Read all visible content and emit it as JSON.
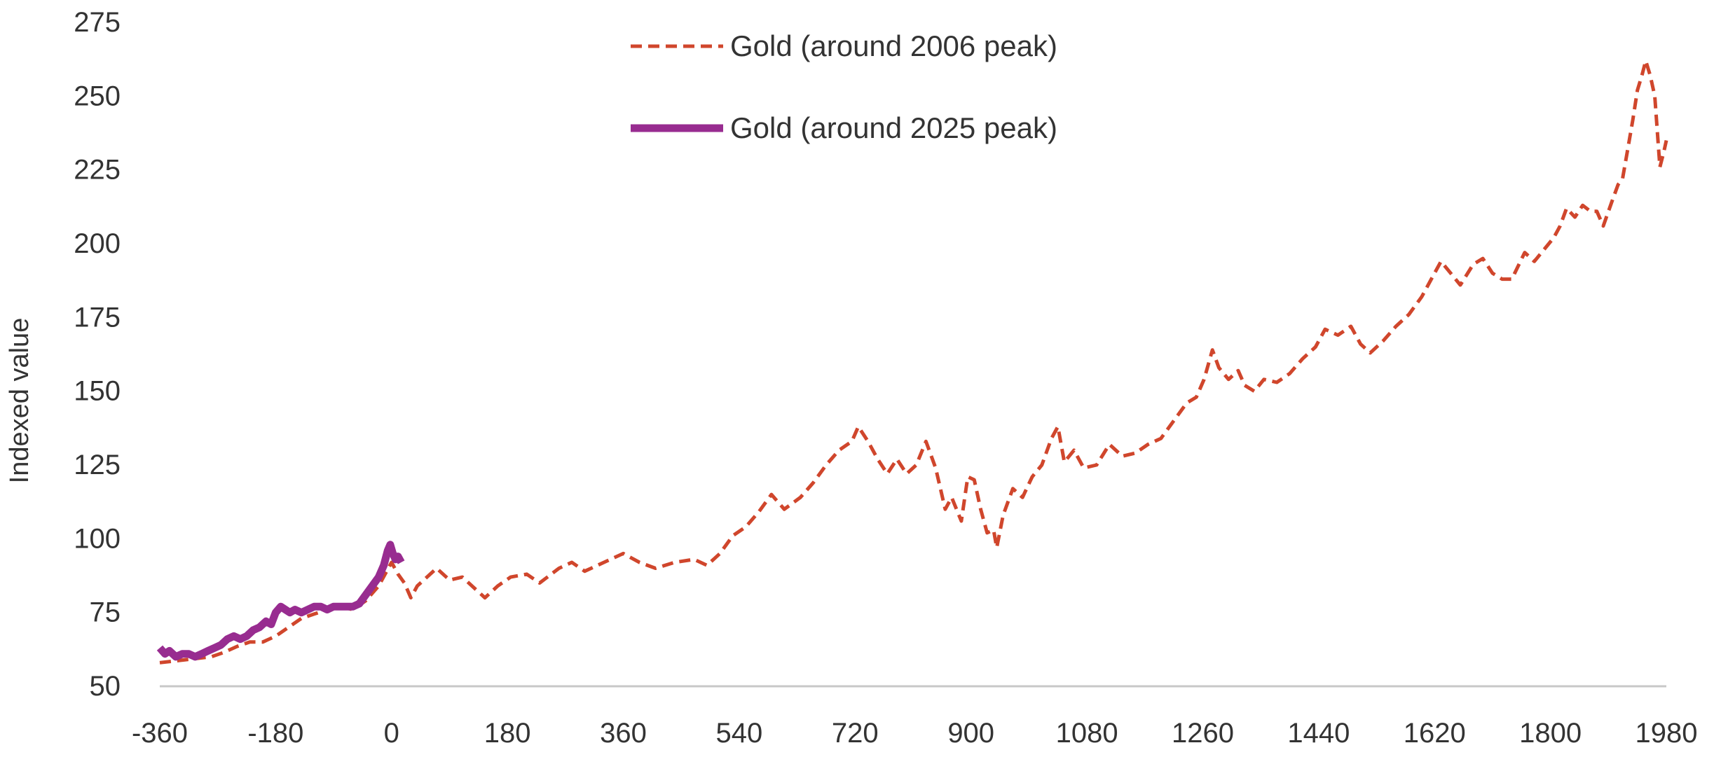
{
  "chart_data": {
    "type": "line",
    "title": "",
    "xlabel": "",
    "ylabel": "Indexed value",
    "xlim": [
      -360,
      1980
    ],
    "ylim": [
      50,
      275
    ],
    "x_ticks": [
      -360,
      -180,
      0,
      180,
      360,
      540,
      720,
      900,
      1080,
      1260,
      1440,
      1620,
      1800,
      1980
    ],
    "x_tick_labels": [
      "-360",
      "-180",
      "0",
      "180",
      "360",
      "540",
      "720",
      "900",
      "1080",
      "1260",
      "1440",
      "1620",
      "1800",
      "1980"
    ],
    "y_ticks": [
      50,
      75,
      100,
      125,
      150,
      175,
      200,
      225,
      250,
      275
    ],
    "y_tick_labels": [
      "50",
      "75",
      "100",
      "125",
      "150",
      "175",
      "200",
      "225",
      "250",
      "275"
    ],
    "grid": false,
    "legend_position": "top-center",
    "series": [
      {
        "name": "Gold (around 2006 peak)",
        "color": "#D0462C",
        "style": "dashed",
        "points": [
          [
            -360,
            58
          ],
          [
            -340,
            58.5
          ],
          [
            -320,
            59
          ],
          [
            -300,
            59.5
          ],
          [
            -280,
            60
          ],
          [
            -260,
            61.5
          ],
          [
            -240,
            63.5
          ],
          [
            -220,
            65
          ],
          [
            -200,
            65
          ],
          [
            -180,
            67
          ],
          [
            -160,
            70
          ],
          [
            -140,
            73
          ],
          [
            -120,
            74.5
          ],
          [
            -100,
            76
          ],
          [
            -80,
            77
          ],
          [
            -60,
            76
          ],
          [
            -40,
            79
          ],
          [
            -20,
            84
          ],
          [
            0,
            92
          ],
          [
            10,
            88
          ],
          [
            20,
            85
          ],
          [
            30,
            80
          ],
          [
            40,
            84
          ],
          [
            60,
            88
          ],
          [
            70,
            90
          ],
          [
            90,
            86
          ],
          [
            110,
            87
          ],
          [
            130,
            83
          ],
          [
            145,
            80
          ],
          [
            165,
            84
          ],
          [
            185,
            87
          ],
          [
            210,
            88
          ],
          [
            230,
            85
          ],
          [
            260,
            90
          ],
          [
            280,
            92
          ],
          [
            300,
            89
          ],
          [
            330,
            92
          ],
          [
            360,
            95
          ],
          [
            385,
            92
          ],
          [
            410,
            90
          ],
          [
            440,
            92
          ],
          [
            470,
            93
          ],
          [
            490,
            91
          ],
          [
            510,
            95
          ],
          [
            530,
            101
          ],
          [
            550,
            104
          ],
          [
            570,
            109
          ],
          [
            590,
            115
          ],
          [
            610,
            110
          ],
          [
            635,
            114
          ],
          [
            655,
            119
          ],
          [
            675,
            125
          ],
          [
            695,
            130
          ],
          [
            715,
            133
          ],
          [
            725,
            138
          ],
          [
            740,
            133
          ],
          [
            755,
            127
          ],
          [
            770,
            122
          ],
          [
            785,
            127
          ],
          [
            800,
            122
          ],
          [
            815,
            125
          ],
          [
            830,
            133
          ],
          [
            845,
            124
          ],
          [
            860,
            110
          ],
          [
            870,
            114
          ],
          [
            885,
            106
          ],
          [
            895,
            121
          ],
          [
            905,
            120
          ],
          [
            915,
            110
          ],
          [
            925,
            102
          ],
          [
            935,
            103
          ],
          [
            940,
            97
          ],
          [
            950,
            108
          ],
          [
            965,
            117
          ],
          [
            980,
            114
          ],
          [
            995,
            121
          ],
          [
            1010,
            125
          ],
          [
            1025,
            134
          ],
          [
            1035,
            138
          ],
          [
            1045,
            126
          ],
          [
            1060,
            130
          ],
          [
            1075,
            124
          ],
          [
            1095,
            125
          ],
          [
            1115,
            132
          ],
          [
            1135,
            128
          ],
          [
            1155,
            129
          ],
          [
            1175,
            132
          ],
          [
            1195,
            134
          ],
          [
            1215,
            140
          ],
          [
            1235,
            146
          ],
          [
            1250,
            148
          ],
          [
            1262,
            154
          ],
          [
            1275,
            164
          ],
          [
            1285,
            158
          ],
          [
            1300,
            154
          ],
          [
            1315,
            157
          ],
          [
            1325,
            152
          ],
          [
            1340,
            150
          ],
          [
            1355,
            154
          ],
          [
            1375,
            153
          ],
          [
            1395,
            156
          ],
          [
            1415,
            161
          ],
          [
            1435,
            165
          ],
          [
            1450,
            171
          ],
          [
            1470,
            169
          ],
          [
            1490,
            172
          ],
          [
            1505,
            166
          ],
          [
            1520,
            163
          ],
          [
            1540,
            167
          ],
          [
            1560,
            172
          ],
          [
            1580,
            176
          ],
          [
            1600,
            182
          ],
          [
            1615,
            188
          ],
          [
            1630,
            194
          ],
          [
            1645,
            190
          ],
          [
            1660,
            186
          ],
          [
            1680,
            193
          ],
          [
            1695,
            195
          ],
          [
            1710,
            190
          ],
          [
            1725,
            188
          ],
          [
            1740,
            188
          ],
          [
            1760,
            197
          ],
          [
            1775,
            194
          ],
          [
            1790,
            198
          ],
          [
            1805,
            202
          ],
          [
            1815,
            206
          ],
          [
            1825,
            212
          ],
          [
            1838,
            209
          ],
          [
            1850,
            213
          ],
          [
            1862,
            211
          ],
          [
            1872,
            211
          ],
          [
            1882,
            206
          ],
          [
            1895,
            214
          ],
          [
            1905,
            220
          ],
          [
            1912,
            222
          ],
          [
            1920,
            232
          ],
          [
            1928,
            242
          ],
          [
            1935,
            252
          ],
          [
            1942,
            257
          ],
          [
            1948,
            262
          ],
          [
            1955,
            257
          ],
          [
            1962,
            250
          ],
          [
            1970,
            226
          ],
          [
            1976,
            231
          ],
          [
            1980,
            235
          ]
        ]
      },
      {
        "name": "Gold (around 2025 peak)",
        "color": "#982C90",
        "style": "solid",
        "points": [
          [
            -360,
            63
          ],
          [
            -352,
            61
          ],
          [
            -345,
            62
          ],
          [
            -335,
            60
          ],
          [
            -325,
            61
          ],
          [
            -315,
            61
          ],
          [
            -305,
            60
          ],
          [
            -295,
            61
          ],
          [
            -285,
            62
          ],
          [
            -275,
            63
          ],
          [
            -265,
            64
          ],
          [
            -255,
            66
          ],
          [
            -245,
            67
          ],
          [
            -235,
            66
          ],
          [
            -225,
            67
          ],
          [
            -215,
            69
          ],
          [
            -205,
            70
          ],
          [
            -195,
            72
          ],
          [
            -187,
            71
          ],
          [
            -180,
            75
          ],
          [
            -172,
            77
          ],
          [
            -165,
            76
          ],
          [
            -158,
            75
          ],
          [
            -150,
            76
          ],
          [
            -140,
            75
          ],
          [
            -130,
            76
          ],
          [
            -120,
            77
          ],
          [
            -110,
            77
          ],
          [
            -100,
            76
          ],
          [
            -90,
            77
          ],
          [
            -80,
            77
          ],
          [
            -70,
            77
          ],
          [
            -60,
            77
          ],
          [
            -50,
            78
          ],
          [
            -40,
            81
          ],
          [
            -30,
            84
          ],
          [
            -20,
            87
          ],
          [
            -12,
            91
          ],
          [
            -6,
            96
          ],
          [
            -2,
            98
          ],
          [
            2,
            95
          ],
          [
            6,
            93
          ],
          [
            10,
            94
          ],
          [
            15,
            92
          ]
        ]
      }
    ]
  }
}
